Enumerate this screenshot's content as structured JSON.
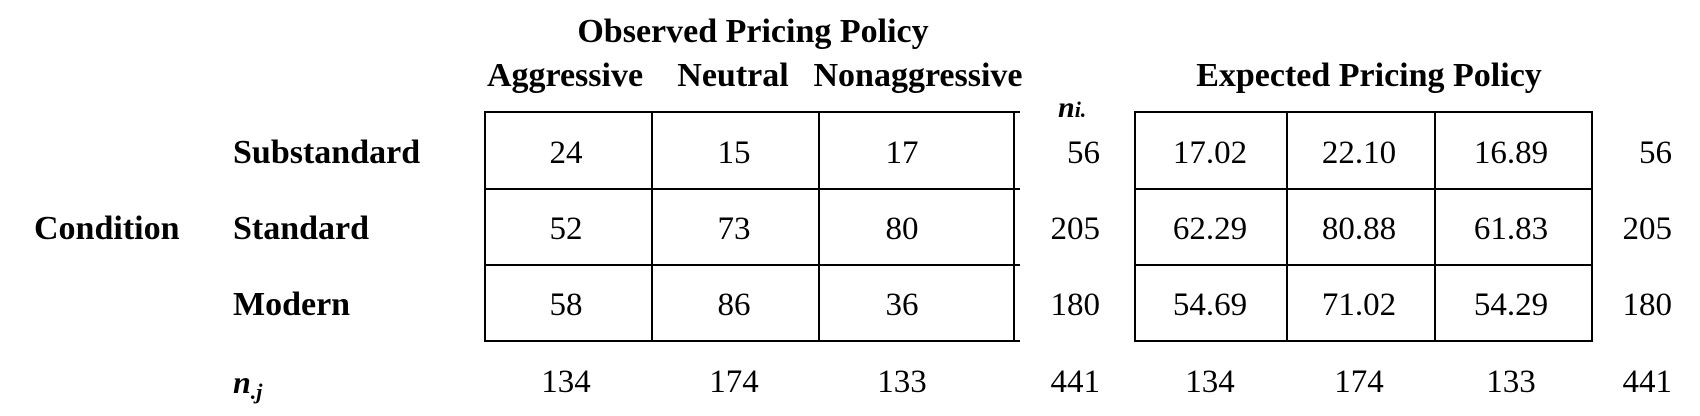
{
  "observed": {
    "title": "Observed Pricing Policy",
    "columns": [
      "Aggressive",
      "Neutral",
      "Nonaggressive"
    ],
    "rows": [
      [
        "24",
        "15",
        "17"
      ],
      [
        "52",
        "73",
        "80"
      ],
      [
        "58",
        "86",
        "36"
      ]
    ],
    "row_totals": [
      "56",
      "205",
      "180"
    ],
    "col_totals": [
      "134",
      "174",
      "133"
    ],
    "grand_total": "441"
  },
  "expected": {
    "title": "Expected Pricing Policy",
    "rows": [
      [
        "17.02",
        "22.10",
        "16.89"
      ],
      [
        "62.29",
        "80.88",
        "61.83"
      ],
      [
        "54.69",
        "71.02",
        "54.29"
      ]
    ],
    "row_totals": [
      "56",
      "205",
      "180"
    ],
    "col_totals": [
      "134",
      "174",
      "133"
    ],
    "grand_total": "441"
  },
  "condition_label": "Condition",
  "row_labels": [
    "Substandard",
    "Standard",
    "Modern"
  ],
  "row_total_symbol": "n",
  "row_total_subscript": "i.",
  "col_total_symbol": "n",
  "col_total_subscript": ".j"
}
